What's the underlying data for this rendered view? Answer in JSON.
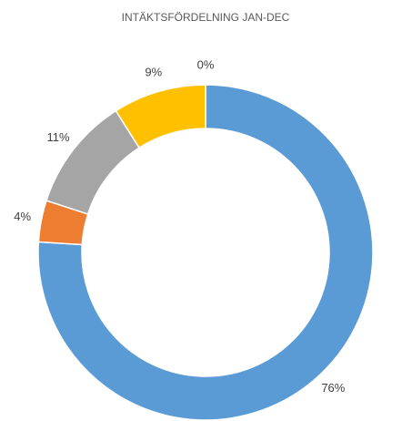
{
  "chart_data": {
    "type": "donut",
    "title": "INTÄKTSFÖRDELNING JAN-DEC",
    "values": [
      76,
      4,
      11,
      9,
      0
    ],
    "value_labels": [
      "76%",
      "4%",
      "11%",
      "9%",
      "0%"
    ],
    "colors": [
      "#5b9bd5",
      "#ed7d31",
      "#a5a5a5",
      "#ffc000",
      "#4472c4"
    ]
  }
}
